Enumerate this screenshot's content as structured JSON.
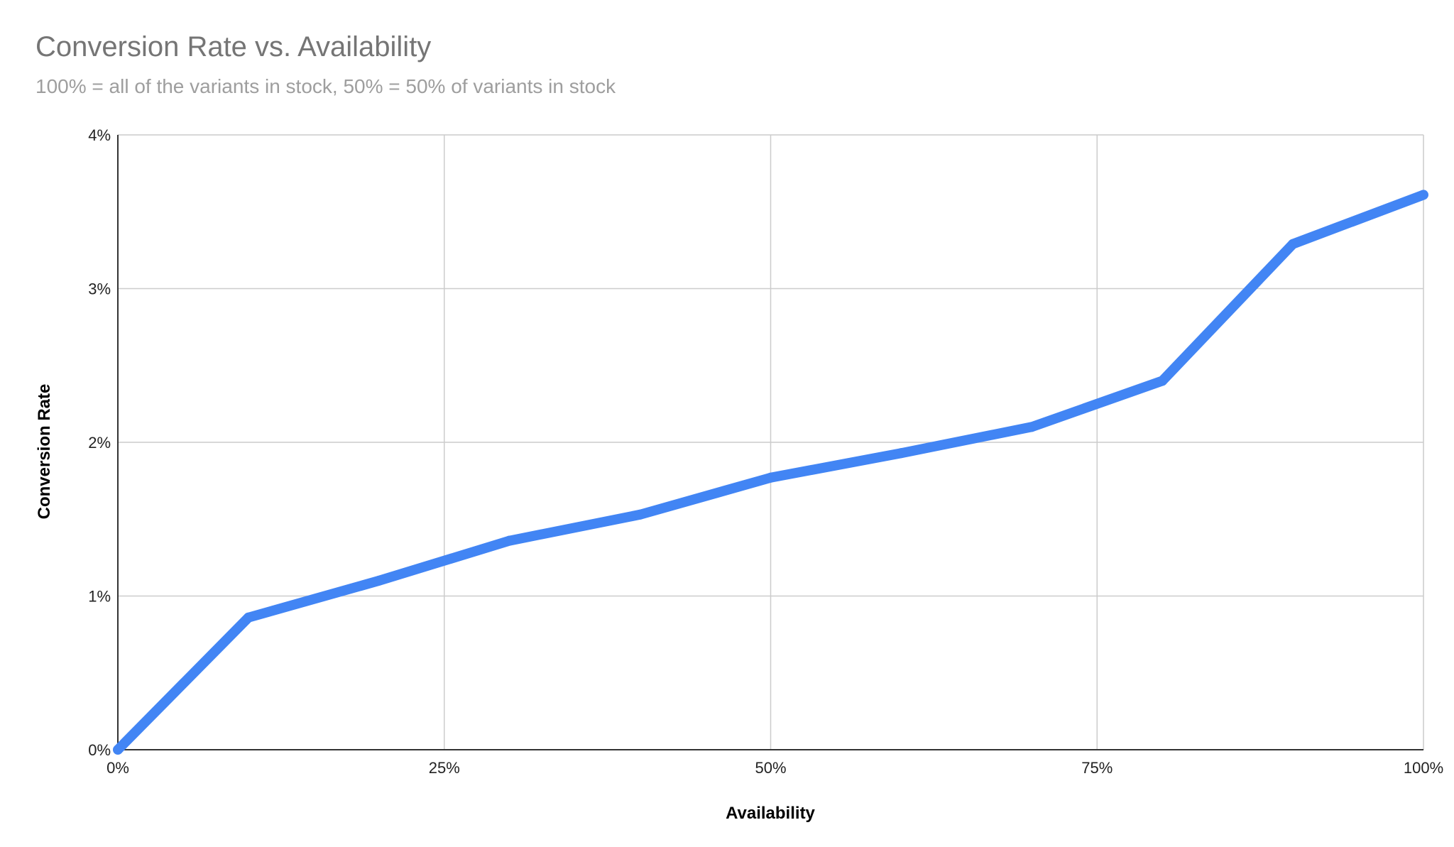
{
  "chart_data": {
    "type": "line",
    "title": "Conversion Rate vs. Availability",
    "subtitle": "100% = all of the variants in stock, 50% = 50% of variants in stock",
    "xlabel": "Availability",
    "ylabel": "Conversion Rate",
    "x_unit": "%",
    "y_unit": "%",
    "xlim": [
      0,
      100
    ],
    "ylim": [
      0,
      4
    ],
    "x_ticks": [
      0,
      25,
      50,
      75,
      100
    ],
    "y_ticks": [
      0,
      1,
      2,
      3,
      4
    ],
    "x_tick_labels": [
      "0%",
      "25%",
      "50%",
      "75%",
      "100%"
    ],
    "y_tick_labels": [
      "0%",
      "1%",
      "2%",
      "3%",
      "4%"
    ],
    "grid": true,
    "legend": "none",
    "series": [
      {
        "color": "#4285f4",
        "x": [
          0,
          10,
          20,
          30,
          40,
          50,
          60,
          70,
          80,
          90,
          100
        ],
        "y": [
          0.0,
          0.86,
          1.1,
          1.36,
          1.53,
          1.77,
          1.93,
          2.1,
          2.4,
          3.29,
          3.61
        ]
      }
    ]
  }
}
